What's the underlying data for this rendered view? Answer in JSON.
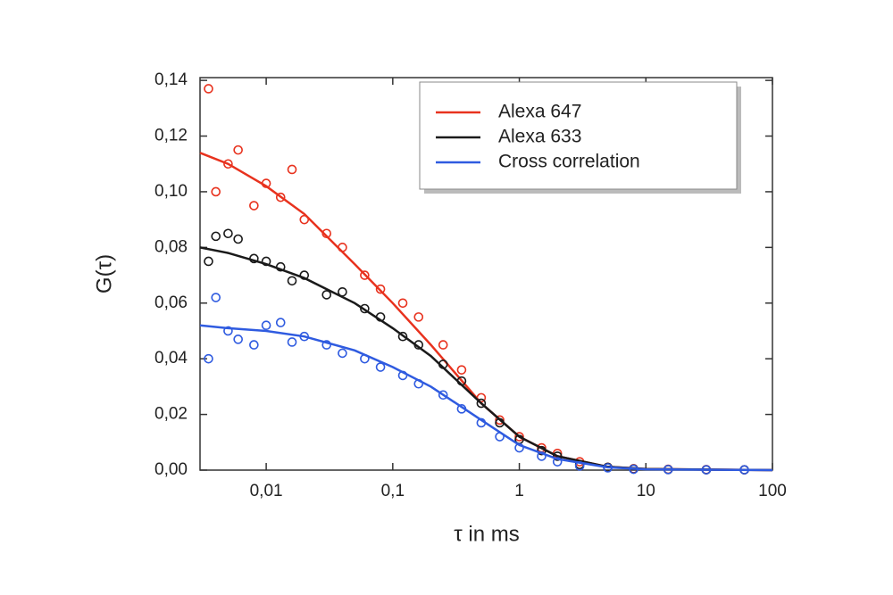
{
  "chart_data": {
    "type": "scatter",
    "x_label": "τ in ms",
    "y_label": "G(τ)",
    "x_log": true,
    "xlim": [
      0.003,
      100
    ],
    "ylim": [
      0,
      0.141
    ],
    "xticks": [
      {
        "value": 0.01,
        "label": "0,01"
      },
      {
        "value": 0.1,
        "label": "0,1"
      },
      1,
      10,
      100
    ],
    "yticks": [
      {
        "value": 0,
        "label": "0,00"
      },
      {
        "value": 0.02,
        "label": "0,02"
      },
      {
        "value": 0.04,
        "label": "0,04"
      },
      {
        "value": 0.06,
        "label": "0,06"
      },
      {
        "value": 0.08,
        "label": "0,08"
      },
      {
        "value": 0.1,
        "label": "0,10"
      },
      {
        "value": 0.12,
        "label": "0,12"
      },
      {
        "value": 0.14,
        "label": "0,14"
      }
    ],
    "legend_position": "upper right",
    "x": [
      0.0035,
      0.004,
      0.005,
      0.006,
      0.008,
      0.01,
      0.013,
      0.016,
      0.02,
      0.03,
      0.04,
      0.06,
      0.08,
      0.12,
      0.16,
      0.25,
      0.35,
      0.5,
      0.7,
      1,
      1.5,
      2,
      3,
      5,
      8,
      15,
      30,
      60
    ],
    "fit_x": [
      0.003,
      0.005,
      0.01,
      0.02,
      0.05,
      0.1,
      0.2,
      0.5,
      1,
      2,
      5,
      10,
      100
    ],
    "series": [
      {
        "name": "Alexa 647",
        "color": "#e8321e",
        "values": [
          0.137,
          0.1,
          0.11,
          0.115,
          0.095,
          0.103,
          0.098,
          0.108,
          0.09,
          0.085,
          0.08,
          0.07,
          0.065,
          0.06,
          0.055,
          0.045,
          0.036,
          0.026,
          0.018,
          0.012,
          0.008,
          0.006,
          0.003,
          0.001,
          0.0005,
          0.0003,
          0.0002,
          0.0001
        ],
        "fit": [
          0.114,
          0.11,
          0.102,
          0.092,
          0.074,
          0.06,
          0.045,
          0.024,
          0.012,
          0.005,
          0.0012,
          0.0004,
          0
        ]
      },
      {
        "name": "Alexa 633",
        "color": "#1a1a1a",
        "values": [
          0.075,
          0.084,
          0.085,
          0.083,
          0.076,
          0.075,
          0.073,
          0.068,
          0.07,
          0.063,
          0.064,
          0.058,
          0.055,
          0.048,
          0.045,
          0.038,
          0.032,
          0.024,
          0.017,
          0.011,
          0.007,
          0.005,
          0.002,
          0.001,
          0.0004,
          0.0002,
          0.0001,
          0.0001
        ],
        "fit": [
          0.08,
          0.078,
          0.074,
          0.069,
          0.06,
          0.051,
          0.041,
          0.024,
          0.012,
          0.005,
          0.0012,
          0.0004,
          0
        ]
      },
      {
        "name": "Cross correlation",
        "color": "#2f5be0",
        "values": [
          0.04,
          0.062,
          0.05,
          0.047,
          0.045,
          0.052,
          0.053,
          0.046,
          0.048,
          0.045,
          0.042,
          0.04,
          0.037,
          0.034,
          0.031,
          0.027,
          0.022,
          0.017,
          0.012,
          0.008,
          0.005,
          0.003,
          0.0015,
          0.0008,
          0.0003,
          0.0002,
          0.0001,
          0.0001
        ],
        "fit": [
          0.052,
          0.051,
          0.05,
          0.048,
          0.043,
          0.037,
          0.03,
          0.018,
          0.009,
          0.004,
          0.001,
          0.0003,
          0
        ]
      }
    ]
  }
}
